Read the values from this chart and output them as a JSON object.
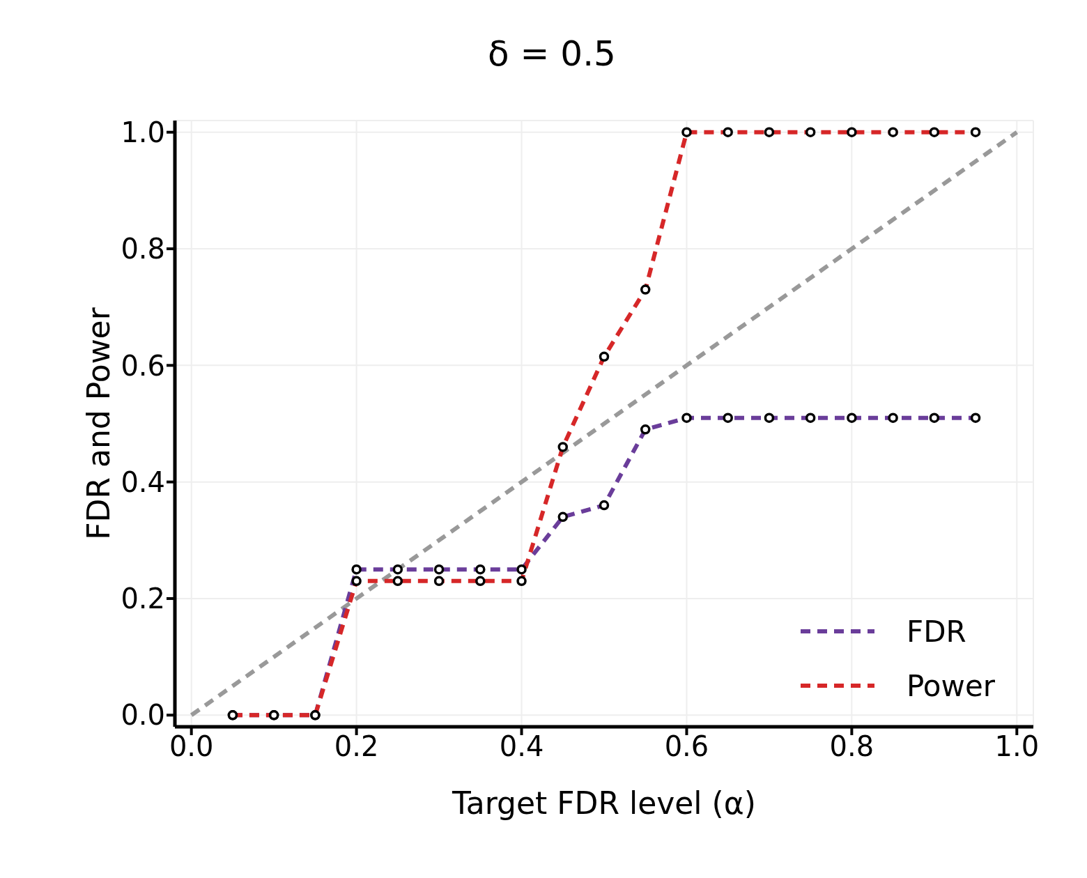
{
  "chart_data": {
    "type": "line",
    "title": "δ = 0.5",
    "xlabel": "Target FDR level (α)",
    "ylabel": "FDR and Power",
    "x": [
      0.05,
      0.1,
      0.15,
      0.2,
      0.25,
      0.3,
      0.35,
      0.4,
      0.45,
      0.5,
      0.55,
      0.6,
      0.65,
      0.7,
      0.75,
      0.8,
      0.85,
      0.9,
      0.95
    ],
    "series": [
      {
        "name": null,
        "color": "#999999",
        "x": [
          0,
          1
        ],
        "values": [
          0,
          1
        ],
        "marker": "none"
      },
      {
        "name": "FDR",
        "color": "#6a3d9a",
        "values": [
          0,
          0,
          0,
          0.25,
          0.25,
          0.25,
          0.25,
          0.25,
          0.34,
          0.36,
          0.49,
          0.51,
          0.51,
          0.51,
          0.51,
          0.51,
          0.51,
          0.51,
          0.51
        ]
      },
      {
        "name": "Power",
        "color": "#d62728",
        "values": [
          0,
          0,
          0,
          0.23,
          0.23,
          0.23,
          0.23,
          0.23,
          0.46,
          0.615,
          0.73,
          1.0,
          1.0,
          1.0,
          1.0,
          1.0,
          1.0,
          1.0,
          1.0
        ]
      }
    ],
    "xlim": [
      -0.02,
      1.02
    ],
    "ylim": [
      -0.02,
      1.02
    ],
    "xticks": [
      {
        "value": 0,
        "label": "0.0"
      },
      0.2,
      0.4,
      0.6,
      0.8,
      {
        "value": 1,
        "label": "1.0"
      }
    ],
    "yticks": [
      {
        "value": 0,
        "label": "0.0"
      },
      0.2,
      0.4,
      0.6,
      0.8,
      {
        "value": 1,
        "label": "1.0"
      }
    ],
    "grid": true,
    "legend": "bottom right",
    "marker": "circle",
    "line_style": "dashed"
  }
}
